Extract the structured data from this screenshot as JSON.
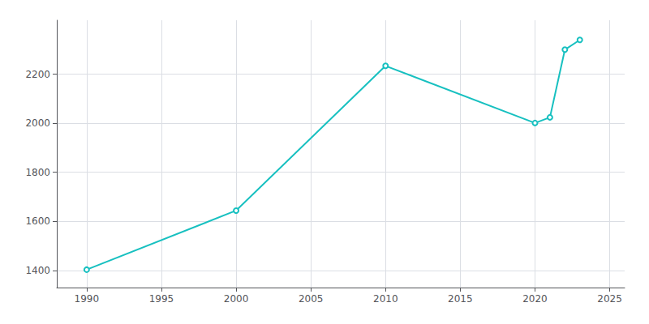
{
  "chart_data": {
    "type": "line",
    "x": [
      1990,
      2000,
      2010,
      2020,
      2021,
      2022,
      2023
    ],
    "values": [
      1403,
      1644,
      2234,
      2001,
      2024,
      2300,
      2340
    ],
    "color": "#17c0c0",
    "xlim": [
      1988,
      2026
    ],
    "ylim": [
      1330,
      2420
    ],
    "xticks": [
      1990,
      1995,
      2000,
      2005,
      2010,
      2015,
      2020,
      2025
    ],
    "yticks": [
      1400,
      1600,
      1800,
      2000,
      2200
    ],
    "grid": true
  }
}
